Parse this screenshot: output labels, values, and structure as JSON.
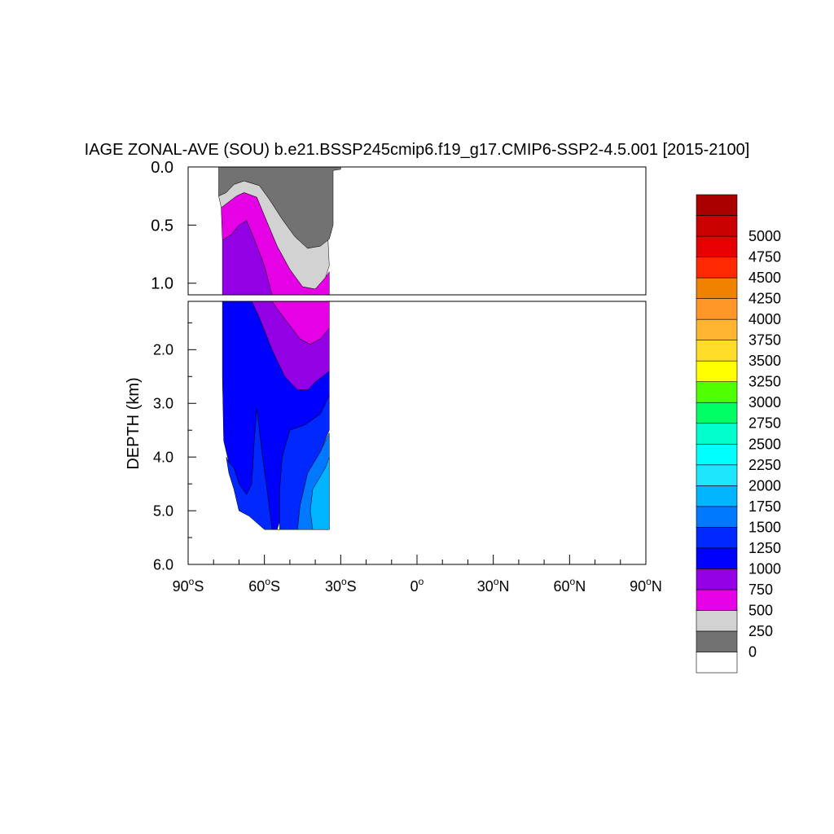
{
  "chart_data": {
    "type": "heatmap",
    "title": "IAGE ZONAL-AVE (SOU) b.e21.BSSP245cmip6.f19_g17.CMIP6-SSP2-4.5.001 [2015-2100]",
    "ylabel": "DEPTH (km)",
    "xlabel": "",
    "x_range": [
      -90,
      90
    ],
    "x_ticks": [
      {
        "value": -90,
        "label": "90",
        "deg": "o",
        "hemi": "S"
      },
      {
        "value": -60,
        "label": "60",
        "deg": "o",
        "hemi": "S"
      },
      {
        "value": -30,
        "label": "30",
        "deg": "o",
        "hemi": "S"
      },
      {
        "value": 0,
        "label": "0",
        "deg": "o",
        "hemi": ""
      },
      {
        "value": 30,
        "label": "30",
        "deg": "o",
        "hemi": "N"
      },
      {
        "value": 60,
        "label": "60",
        "deg": "o",
        "hemi": "N"
      },
      {
        "value": 90,
        "label": "90",
        "deg": "o",
        "hemi": "N"
      }
    ],
    "upper_panel": {
      "depth_range": [
        0,
        1.1
      ],
      "y_ticks": [
        {
          "value": 0.0,
          "label": "0.0"
        },
        {
          "value": 0.5,
          "label": "0.5"
        },
        {
          "value": 1.0,
          "label": "1.0"
        }
      ]
    },
    "lower_panel": {
      "depth_range": [
        1.1,
        6.0
      ],
      "y_ticks": [
        {
          "value": 2.0,
          "label": "2.0"
        },
        {
          "value": 3.0,
          "label": "3.0"
        },
        {
          "value": 4.0,
          "label": "4.0"
        },
        {
          "value": 5.0,
          "label": "5.0"
        },
        {
          "value": 6.0,
          "label": "6.0"
        }
      ]
    },
    "colorbar": {
      "labels": [
        "0",
        "250",
        "500",
        "750",
        "1000",
        "1250",
        "1500",
        "1750",
        "2000",
        "2250",
        "2500",
        "2750",
        "3000",
        "3250",
        "3500",
        "3750",
        "4000",
        "4250",
        "4500",
        "4750",
        "5000"
      ],
      "colors": [
        "#ffffff",
        "#727272",
        "#d2d2d2",
        "#e600e6",
        "#9400e6",
        "#0000ff",
        "#0028ff",
        "#0078ff",
        "#00b4ff",
        "#1ee6ff",
        "#00ffff",
        "#00ffcc",
        "#00ff64",
        "#50ff00",
        "#ffff00",
        "#ffdc28",
        "#ffb432",
        "#ff9628",
        "#f08200",
        "#ff2800",
        "#e60000",
        "#c80000",
        "#aa0000"
      ]
    },
    "contour_regions": [
      {
        "level": 1000,
        "color": "#0000ff",
        "panel": "lower",
        "points": [
          [
            -76.5,
            1.1
          ],
          [
            -65,
            1.1
          ],
          [
            -62,
            1.4
          ],
          [
            -57,
            2.0
          ],
          [
            -52,
            2.5
          ],
          [
            -47,
            2.75
          ],
          [
            -43,
            2.75
          ],
          [
            -40,
            2.6
          ],
          [
            -34.5,
            2.4
          ],
          [
            -34.5,
            2.85
          ],
          [
            -38,
            3.2
          ],
          [
            -44,
            3.4
          ],
          [
            -50,
            3.5
          ],
          [
            -53,
            4.0
          ],
          [
            -54,
            4.6
          ],
          [
            -54,
            5.2
          ],
          [
            -55,
            5.35
          ],
          [
            -57,
            5.35
          ],
          [
            -59,
            4.6
          ],
          [
            -61,
            3.9
          ],
          [
            -63,
            3.1
          ],
          [
            -64,
            3.7
          ],
          [
            -65,
            4.5
          ],
          [
            -67,
            4.7
          ],
          [
            -70,
            4.5
          ],
          [
            -72,
            4.2
          ],
          [
            -74,
            4.1
          ],
          [
            -75,
            3.9
          ],
          [
            -76,
            3.7
          ],
          [
            -76.5,
            2.5
          ]
        ]
      },
      {
        "level": 1250,
        "color": "#0028ff",
        "panel": "lower",
        "points": [
          [
            -75,
            4.0
          ],
          [
            -74,
            4.1
          ],
          [
            -72,
            4.2
          ],
          [
            -70,
            4.5
          ],
          [
            -67,
            4.7
          ],
          [
            -65,
            4.5
          ],
          [
            -64,
            3.7
          ],
          [
            -63,
            3.1
          ],
          [
            -61,
            3.9
          ],
          [
            -59,
            4.6
          ],
          [
            -57,
            5.35
          ],
          [
            -54,
            5.35
          ],
          [
            -54,
            4.6
          ],
          [
            -53,
            4.0
          ],
          [
            -50,
            3.5
          ],
          [
            -44,
            3.4
          ],
          [
            -38,
            3.2
          ],
          [
            -34.5,
            2.85
          ],
          [
            -34.5,
            3.5
          ],
          [
            -38,
            3.9
          ],
          [
            -43,
            4.3
          ],
          [
            -46,
            4.9
          ],
          [
            -47,
            5.35
          ],
          [
            -60,
            5.35
          ],
          [
            -66,
            5.1
          ],
          [
            -70,
            5.0
          ],
          [
            -72,
            4.6
          ],
          [
            -74,
            4.3
          ]
        ]
      },
      {
        "level": 1500,
        "color": "#0078ff",
        "panel": "lower",
        "points": [
          [
            -34.5,
            3.55
          ],
          [
            -38,
            3.9
          ],
          [
            -43,
            4.3
          ],
          [
            -46,
            4.9
          ],
          [
            -47,
            5.35
          ],
          [
            -34.5,
            5.35
          ]
        ]
      },
      {
        "level": 1750,
        "color": "#00b4ff",
        "panel": "lower",
        "points": [
          [
            -34.5,
            4.0
          ],
          [
            -36,
            4.2
          ],
          [
            -41,
            4.6
          ],
          [
            -42,
            5.0
          ],
          [
            -41,
            5.35
          ],
          [
            -34.5,
            5.35
          ]
        ]
      },
      {
        "level": 750,
        "color": "#9400e6",
        "panel": "upper",
        "points": [
          [
            -76.5,
            0.63
          ],
          [
            -73,
            0.58
          ],
          [
            -70,
            0.5
          ],
          [
            -67,
            0.46
          ],
          [
            -64,
            0.62
          ],
          [
            -60,
            0.85
          ],
          [
            -57,
            1.1
          ],
          [
            -76.5,
            1.1
          ]
        ]
      },
      {
        "level": 750,
        "color": "#9400e6",
        "panel": "lower",
        "points": [
          [
            -65,
            1.1
          ],
          [
            -57,
            1.1
          ],
          [
            -54,
            1.3
          ],
          [
            -50,
            1.55
          ],
          [
            -46,
            1.8
          ],
          [
            -42,
            1.9
          ],
          [
            -38,
            1.8
          ],
          [
            -34.5,
            1.6
          ],
          [
            -34.5,
            2.4
          ],
          [
            -40,
            2.6
          ],
          [
            -43,
            2.75
          ],
          [
            -47,
            2.75
          ],
          [
            -52,
            2.5
          ],
          [
            -57,
            2.0
          ],
          [
            -62,
            1.4
          ]
        ]
      },
      {
        "level": 500,
        "color": "#e600e6",
        "panel": "upper",
        "points": [
          [
            -77,
            0.35
          ],
          [
            -74,
            0.3
          ],
          [
            -71,
            0.25
          ],
          [
            -68,
            0.22
          ],
          [
            -63,
            0.26
          ],
          [
            -60,
            0.42
          ],
          [
            -55,
            0.68
          ],
          [
            -50,
            0.88
          ],
          [
            -45,
            1.03
          ],
          [
            -40,
            1.05
          ],
          [
            -36,
            0.95
          ],
          [
            -34.5,
            0.9
          ],
          [
            -34.5,
            1.1
          ],
          [
            -57,
            1.1
          ],
          [
            -60,
            0.85
          ],
          [
            -64,
            0.62
          ],
          [
            -67,
            0.46
          ],
          [
            -70,
            0.5
          ],
          [
            -73,
            0.58
          ],
          [
            -76.5,
            0.63
          ]
        ]
      },
      {
        "level": 500,
        "color": "#e600e6",
        "panel": "lower",
        "points": [
          [
            -57,
            1.1
          ],
          [
            -34.5,
            1.1
          ],
          [
            -34.5,
            1.6
          ],
          [
            -38,
            1.8
          ],
          [
            -42,
            1.9
          ],
          [
            -46,
            1.8
          ],
          [
            -50,
            1.55
          ],
          [
            -54,
            1.3
          ]
        ]
      },
      {
        "level": 250,
        "color": "#d2d2d2",
        "panel": "upper",
        "points": [
          [
            -78,
            0.25
          ],
          [
            -75,
            0.22
          ],
          [
            -72,
            0.15
          ],
          [
            -68,
            0.12
          ],
          [
            -62,
            0.16
          ],
          [
            -58,
            0.28
          ],
          [
            -53,
            0.45
          ],
          [
            -48,
            0.6
          ],
          [
            -43,
            0.7
          ],
          [
            -38,
            0.68
          ],
          [
            -35,
            0.62
          ],
          [
            -34.5,
            0.85
          ],
          [
            -36,
            0.95
          ],
          [
            -40,
            1.05
          ],
          [
            -45,
            1.03
          ],
          [
            -50,
            0.88
          ],
          [
            -55,
            0.68
          ],
          [
            -60,
            0.42
          ],
          [
            -63,
            0.26
          ],
          [
            -68,
            0.22
          ],
          [
            -71,
            0.25
          ],
          [
            -74,
            0.3
          ],
          [
            -77,
            0.35
          ]
        ]
      },
      {
        "level": 0,
        "color": "#727272",
        "panel": "upper",
        "points": [
          [
            -78,
            0.0
          ],
          [
            -30,
            0.0
          ],
          [
            -30,
            0.02
          ],
          [
            -33,
            0.03
          ],
          [
            -33,
            0.5
          ],
          [
            -34.5,
            0.62
          ],
          [
            -38,
            0.68
          ],
          [
            -43,
            0.7
          ],
          [
            -48,
            0.6
          ],
          [
            -53,
            0.45
          ],
          [
            -58,
            0.28
          ],
          [
            -62,
            0.16
          ],
          [
            -68,
            0.12
          ],
          [
            -72,
            0.15
          ],
          [
            -75,
            0.22
          ],
          [
            -78,
            0.25
          ]
        ]
      }
    ]
  }
}
